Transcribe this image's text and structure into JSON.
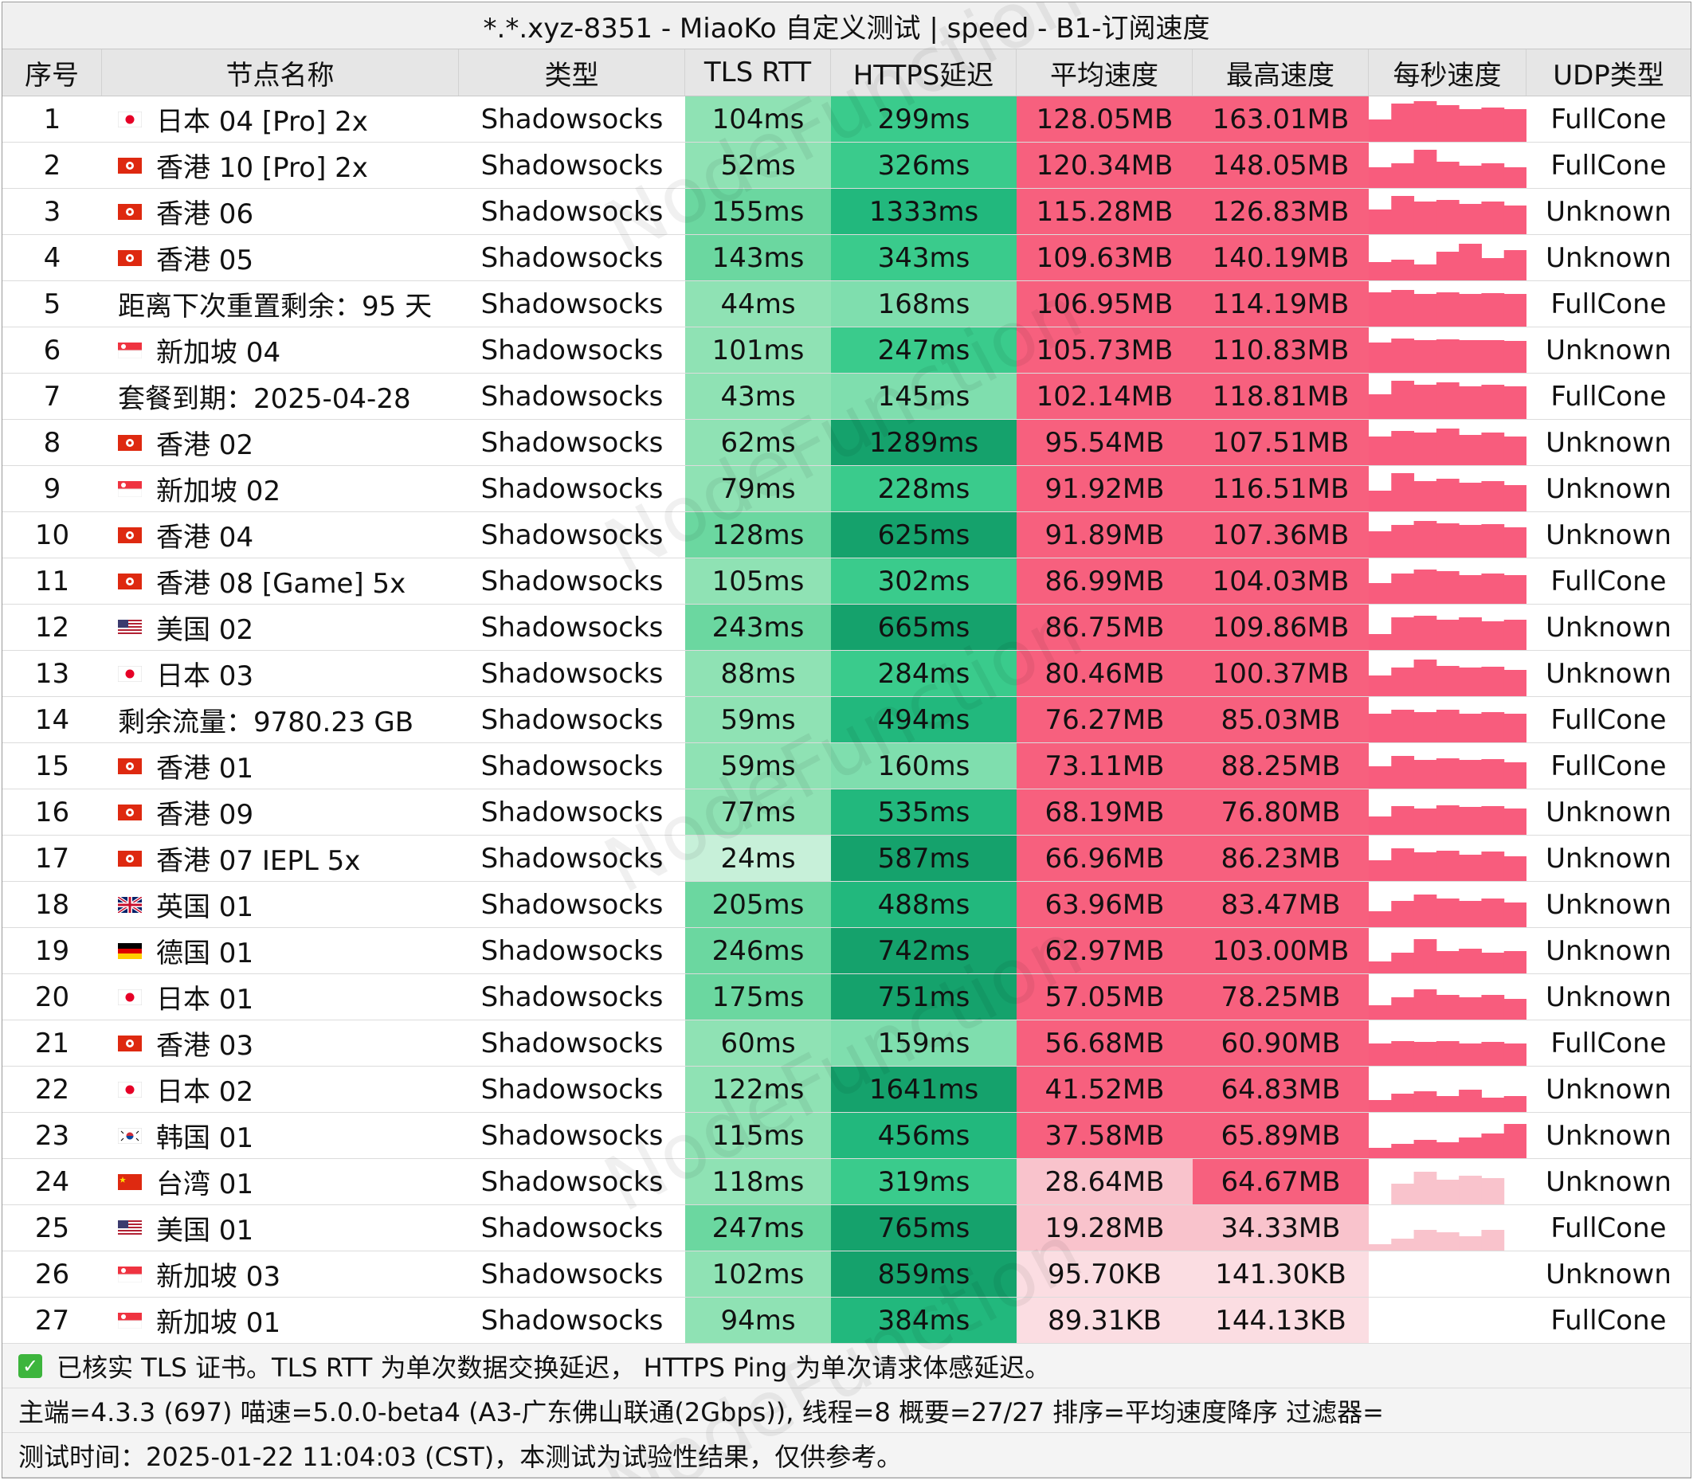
{
  "window": {
    "title": "*.*.xyz-8351 - MiaoKo 自定义测试 | speed - B1-订阅速度"
  },
  "watermark": "NodeFunction",
  "columns": [
    "序号",
    "节点名称",
    "类型",
    "TLS RTT",
    "HTTPS延迟",
    "平均速度",
    "最高速度",
    "每秒速度",
    "UDP类型"
  ],
  "colors": {
    "tls_scale": [
      "#c7f0d9",
      "#8fe2b4",
      "#6bd7a0"
    ],
    "https_scale": [
      "#7fdeae",
      "#3acb8c",
      "#22b87d",
      "#15a26c"
    ],
    "speed_strong": "#f7607e",
    "speed_weak": "#f9c3cc",
    "speed_faint": "#fbdde2",
    "spark": "#f85c7d"
  },
  "rows": [
    {
      "idx": "1",
      "flag": "jp",
      "name": "日本 04 [Pro] 2x",
      "type": "Shadowsocks",
      "tls": "104ms",
      "tls_level": 1,
      "https": "299ms",
      "https_level": 1,
      "avg": "128.05MB",
      "max": "163.01MB",
      "spark": [
        0.55,
        0.95,
        1.0,
        0.9,
        0.8,
        0.85,
        0.8
      ],
      "udp": "FullCone"
    },
    {
      "idx": "2",
      "flag": "hk",
      "name": "香港 10 [Pro] 2x",
      "type": "Shadowsocks",
      "tls": "52ms",
      "tls_level": 1,
      "https": "326ms",
      "https_level": 1,
      "avg": "120.34MB",
      "max": "148.05MB",
      "spark": [
        0.5,
        0.6,
        0.95,
        0.65,
        0.55,
        0.6,
        0.5
      ],
      "udp": "FullCone"
    },
    {
      "idx": "3",
      "flag": "hk",
      "name": "香港 06",
      "type": "Shadowsocks",
      "tls": "155ms",
      "tls_level": 2,
      "https": "1333ms",
      "https_level": 2,
      "avg": "115.28MB",
      "max": "126.83MB",
      "spark": [
        0.6,
        0.95,
        0.8,
        0.85,
        0.75,
        0.8,
        0.7
      ],
      "udp": "Unknown"
    },
    {
      "idx": "4",
      "flag": "hk",
      "name": "香港 05",
      "type": "Shadowsocks",
      "tls": "143ms",
      "tls_level": 2,
      "https": "343ms",
      "https_level": 1,
      "avg": "109.63MB",
      "max": "140.19MB",
      "spark": [
        0.45,
        0.5,
        0.4,
        0.7,
        0.9,
        0.55,
        0.75
      ],
      "udp": "Unknown"
    },
    {
      "idx": "5",
      "flag": "",
      "name": "距离下次重置剩余：95 天",
      "type": "Shadowsocks",
      "tls": "44ms",
      "tls_level": 1,
      "https": "168ms",
      "https_level": 0,
      "avg": "106.95MB",
      "max": "114.19MB",
      "spark": [
        0.85,
        0.9,
        0.8,
        0.85,
        0.8,
        0.82,
        0.8
      ],
      "udp": "FullCone"
    },
    {
      "idx": "6",
      "flag": "sg",
      "name": "新加坡 04",
      "type": "Shadowsocks",
      "tls": "101ms",
      "tls_level": 1,
      "https": "247ms",
      "https_level": 1,
      "avg": "105.73MB",
      "max": "110.83MB",
      "spark": [
        0.75,
        0.85,
        0.8,
        0.82,
        0.8,
        0.8,
        0.78
      ],
      "udp": "Unknown"
    },
    {
      "idx": "7",
      "flag": "",
      "name": "套餐到期：2025-04-28",
      "type": "Shadowsocks",
      "tls": "43ms",
      "tls_level": 1,
      "https": "145ms",
      "https_level": 0,
      "avg": "102.14MB",
      "max": "118.81MB",
      "spark": [
        0.6,
        0.95,
        0.85,
        0.9,
        0.8,
        0.85,
        0.8
      ],
      "udp": "FullCone"
    },
    {
      "idx": "8",
      "flag": "hk",
      "name": "香港 02",
      "type": "Shadowsocks",
      "tls": "62ms",
      "tls_level": 1,
      "https": "1289ms",
      "https_level": 3,
      "avg": "95.54MB",
      "max": "107.51MB",
      "spark": [
        0.7,
        0.85,
        0.8,
        0.9,
        0.75,
        0.8,
        0.7
      ],
      "udp": "Unknown"
    },
    {
      "idx": "9",
      "flag": "sg",
      "name": "新加坡 02",
      "type": "Shadowsocks",
      "tls": "79ms",
      "tls_level": 1,
      "https": "228ms",
      "https_level": 1,
      "avg": "91.92MB",
      "max": "116.51MB",
      "spark": [
        0.5,
        0.95,
        0.75,
        0.8,
        0.7,
        0.75,
        0.65
      ],
      "udp": "Unknown"
    },
    {
      "idx": "10",
      "flag": "hk",
      "name": "香港 04",
      "type": "Shadowsocks",
      "tls": "128ms",
      "tls_level": 2,
      "https": "625ms",
      "https_level": 3,
      "avg": "91.89MB",
      "max": "107.36MB",
      "spark": [
        0.65,
        0.8,
        0.9,
        0.85,
        0.8,
        0.82,
        0.75
      ],
      "udp": "Unknown"
    },
    {
      "idx": "11",
      "flag": "hk",
      "name": "香港 08 [Game] 5x",
      "type": "Shadowsocks",
      "tls": "105ms",
      "tls_level": 1,
      "https": "302ms",
      "https_level": 1,
      "avg": "86.99MB",
      "max": "104.03MB",
      "spark": [
        0.5,
        0.75,
        0.85,
        0.8,
        0.7,
        0.75,
        0.7
      ],
      "udp": "FullCone"
    },
    {
      "idx": "12",
      "flag": "us",
      "name": "美国 02",
      "type": "Shadowsocks",
      "tls": "243ms",
      "tls_level": 2,
      "https": "665ms",
      "https_level": 3,
      "avg": "86.75MB",
      "max": "109.86MB",
      "spark": [
        0.4,
        0.8,
        0.85,
        0.75,
        0.8,
        0.7,
        0.75
      ],
      "udp": "Unknown"
    },
    {
      "idx": "13",
      "flag": "jp",
      "name": "日本 03",
      "type": "Shadowsocks",
      "tls": "88ms",
      "tls_level": 1,
      "https": "284ms",
      "https_level": 1,
      "avg": "80.46MB",
      "max": "100.37MB",
      "spark": [
        0.5,
        0.7,
        0.9,
        0.75,
        0.7,
        0.72,
        0.65
      ],
      "udp": "Unknown"
    },
    {
      "idx": "14",
      "flag": "",
      "name": "剩余流量：9780.23 GB",
      "type": "Shadowsocks",
      "tls": "59ms",
      "tls_level": 1,
      "https": "494ms",
      "https_level": 2,
      "avg": "76.27MB",
      "max": "85.03MB",
      "spark": [
        0.7,
        0.8,
        0.75,
        0.8,
        0.7,
        0.75,
        0.7
      ],
      "udp": "FullCone"
    },
    {
      "idx": "15",
      "flag": "hk",
      "name": "香港 01",
      "type": "Shadowsocks",
      "tls": "59ms",
      "tls_level": 1,
      "https": "160ms",
      "https_level": 0,
      "avg": "73.11MB",
      "max": "88.25MB",
      "spark": [
        0.55,
        0.8,
        0.7,
        0.75,
        0.7,
        0.72,
        0.65
      ],
      "udp": "FullCone"
    },
    {
      "idx": "16",
      "flag": "hk",
      "name": "香港 09",
      "type": "Shadowsocks",
      "tls": "77ms",
      "tls_level": 1,
      "https": "535ms",
      "https_level": 2,
      "avg": "68.19MB",
      "max": "76.80MB",
      "spark": [
        0.45,
        0.7,
        0.65,
        0.72,
        0.68,
        0.7,
        0.65
      ],
      "udp": "Unknown"
    },
    {
      "idx": "17",
      "flag": "hk",
      "name": "香港 07 IEPL 5x",
      "type": "Shadowsocks",
      "tls": "24ms",
      "tls_level": 0,
      "https": "587ms",
      "https_level": 3,
      "avg": "66.96MB",
      "max": "86.23MB",
      "spark": [
        0.5,
        0.8,
        0.7,
        0.75,
        0.65,
        0.72,
        0.6
      ],
      "udp": "Unknown"
    },
    {
      "idx": "18",
      "flag": "gb",
      "name": "英国 01",
      "type": "Shadowsocks",
      "tls": "205ms",
      "tls_level": 2,
      "https": "488ms",
      "https_level": 2,
      "avg": "63.96MB",
      "max": "83.47MB",
      "spark": [
        0.4,
        0.65,
        0.8,
        0.7,
        0.65,
        0.7,
        0.6
      ],
      "udp": "Unknown"
    },
    {
      "idx": "19",
      "flag": "de",
      "name": "德国 01",
      "type": "Shadowsocks",
      "tls": "246ms",
      "tls_level": 2,
      "https": "742ms",
      "https_level": 3,
      "avg": "62.97MB",
      "max": "103.00MB",
      "spark": [
        0.3,
        0.5,
        0.85,
        0.55,
        0.6,
        0.5,
        0.55
      ],
      "udp": "Unknown"
    },
    {
      "idx": "20",
      "flag": "jp",
      "name": "日本 01",
      "type": "Shadowsocks",
      "tls": "175ms",
      "tls_level": 2,
      "https": "751ms",
      "https_level": 3,
      "avg": "57.05MB",
      "max": "78.25MB",
      "spark": [
        0.35,
        0.55,
        0.75,
        0.6,
        0.55,
        0.6,
        0.5
      ],
      "udp": "Unknown"
    },
    {
      "idx": "21",
      "flag": "hk",
      "name": "香港 03",
      "type": "Shadowsocks",
      "tls": "60ms",
      "tls_level": 1,
      "https": "159ms",
      "https_level": 0,
      "avg": "56.68MB",
      "max": "60.90MB",
      "spark": [
        0.55,
        0.6,
        0.58,
        0.6,
        0.55,
        0.58,
        0.55
      ],
      "udp": "FullCone"
    },
    {
      "idx": "22",
      "flag": "jp",
      "name": "日本 02",
      "type": "Shadowsocks",
      "tls": "122ms",
      "tls_level": 1,
      "https": "1641ms",
      "https_level": 3,
      "avg": "41.52MB",
      "max": "64.83MB",
      "spark": [
        0.3,
        0.45,
        0.5,
        0.4,
        0.55,
        0.35,
        0.4
      ],
      "udp": "Unknown"
    },
    {
      "idx": "23",
      "flag": "kr",
      "name": "韩国 01",
      "type": "Shadowsocks",
      "tls": "115ms",
      "tls_level": 1,
      "https": "456ms",
      "https_level": 2,
      "avg": "37.58MB",
      "max": "65.89MB",
      "spark": [
        0.25,
        0.35,
        0.45,
        0.4,
        0.5,
        0.6,
        0.85
      ],
      "udp": "Unknown"
    },
    {
      "idx": "24",
      "flag": "cn",
      "name": "台湾 01",
      "type": "Shadowsocks",
      "tls": "118ms",
      "tls_level": 1,
      "https": "319ms",
      "https_level": 1,
      "avg": "28.64MB",
      "max": "64.67MB",
      "spark": [
        0.0,
        0.5,
        0.8,
        0.6,
        0.7,
        0.65,
        0.0
      ],
      "udp": "Unknown"
    },
    {
      "idx": "25",
      "flag": "us",
      "name": "美国 01",
      "type": "Shadowsocks",
      "tls": "247ms",
      "tls_level": 2,
      "https": "765ms",
      "https_level": 3,
      "avg": "19.28MB",
      "max": "34.33MB",
      "spark": [
        0.15,
        0.3,
        0.5,
        0.45,
        0.35,
        0.5,
        0.0
      ],
      "udp": "FullCone"
    },
    {
      "idx": "26",
      "flag": "sg",
      "name": "新加坡 03",
      "type": "Shadowsocks",
      "tls": "102ms",
      "tls_level": 1,
      "https": "859ms",
      "https_level": 3,
      "avg": "95.70KB",
      "max": "141.30KB",
      "spark": [],
      "udp": "Unknown"
    },
    {
      "idx": "27",
      "flag": "sg",
      "name": "新加坡 01",
      "type": "Shadowsocks",
      "tls": "94ms",
      "tls_level": 1,
      "https": "384ms",
      "https_level": 2,
      "avg": "89.31KB",
      "max": "144.13KB",
      "spark": [],
      "udp": "FullCone"
    }
  ],
  "footer": {
    "line1": "已核实 TLS 证书。TLS RTT 为单次数据交换延迟， HTTPS Ping 为单次请求体感延迟。",
    "line2": "主端=4.3.3 (697) 喵速=5.0.0-beta4 (A3-广东佛山联通(2Gbps)), 线程=8 概要=27/27 排序=平均速度降序 过滤器=",
    "line3": "测试时间：2025-01-22 11:04:03 (CST)，本测试为试验性结果，仅供参考。"
  }
}
